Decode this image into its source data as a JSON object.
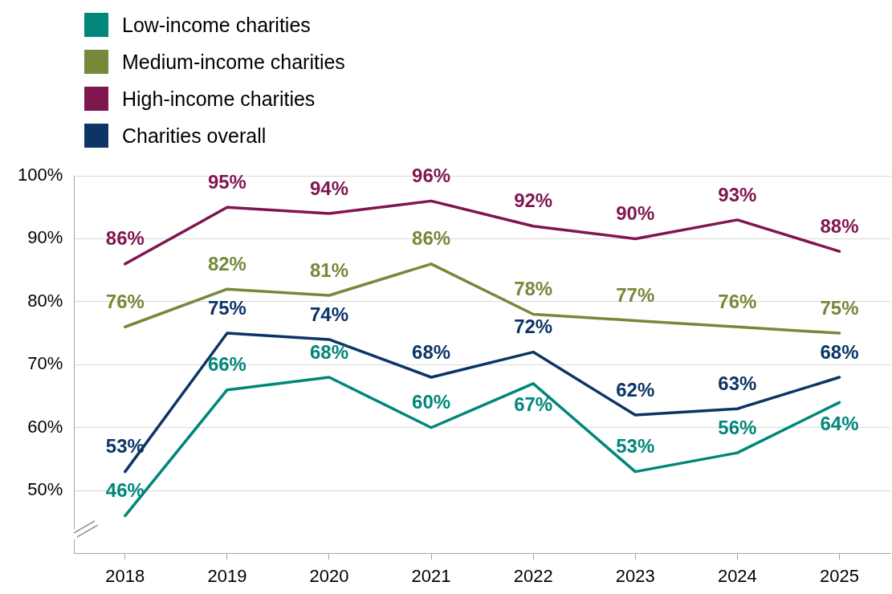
{
  "chart_data": {
    "type": "line",
    "categories": [
      "2018",
      "2019",
      "2020",
      "2021",
      "2022",
      "2023",
      "2024",
      "2025"
    ],
    "series": [
      {
        "name": "Low-income charities",
        "color": "#00877a",
        "values": [
          46,
          66,
          68,
          60,
          67,
          53,
          56,
          64
        ],
        "value_labels": [
          "46%",
          "66%",
          "68%",
          "60%",
          "67%",
          "53%",
          "56%",
          "64%"
        ]
      },
      {
        "name": "Medium-income charities",
        "color": "#76893a",
        "values": [
          76,
          82,
          81,
          86,
          78,
          77,
          76,
          75
        ],
        "value_labels": [
          "76%",
          "82%",
          "81%",
          "86%",
          "78%",
          "77%",
          "76%",
          "75%"
        ]
      },
      {
        "name": "High-income charities",
        "color": "#7f1650",
        "values": [
          86,
          95,
          94,
          96,
          92,
          90,
          93,
          88
        ],
        "value_labels": [
          "86%",
          "95%",
          "94%",
          "96%",
          "92%",
          "90%",
          "93%",
          "88%"
        ]
      },
      {
        "name": "Charities overall",
        "color": "#0c3566",
        "values": [
          53,
          75,
          74,
          68,
          72,
          62,
          63,
          68
        ],
        "value_labels": [
          "53%",
          "75%",
          "74%",
          "68%",
          "72%",
          "62%",
          "63%",
          "68%"
        ]
      }
    ],
    "ylim": [
      40,
      100
    ],
    "yticks": [
      {
        "value": 50,
        "label": "50%"
      },
      {
        "value": 60,
        "label": "60%"
      },
      {
        "value": 70,
        "label": "70%"
      },
      {
        "value": 80,
        "label": "80%"
      },
      {
        "value": 90,
        "label": "90%"
      },
      {
        "value": 100,
        "label": "100%"
      }
    ],
    "grid": "y",
    "legend": "top left",
    "marker": "none",
    "line_style": "solid"
  }
}
